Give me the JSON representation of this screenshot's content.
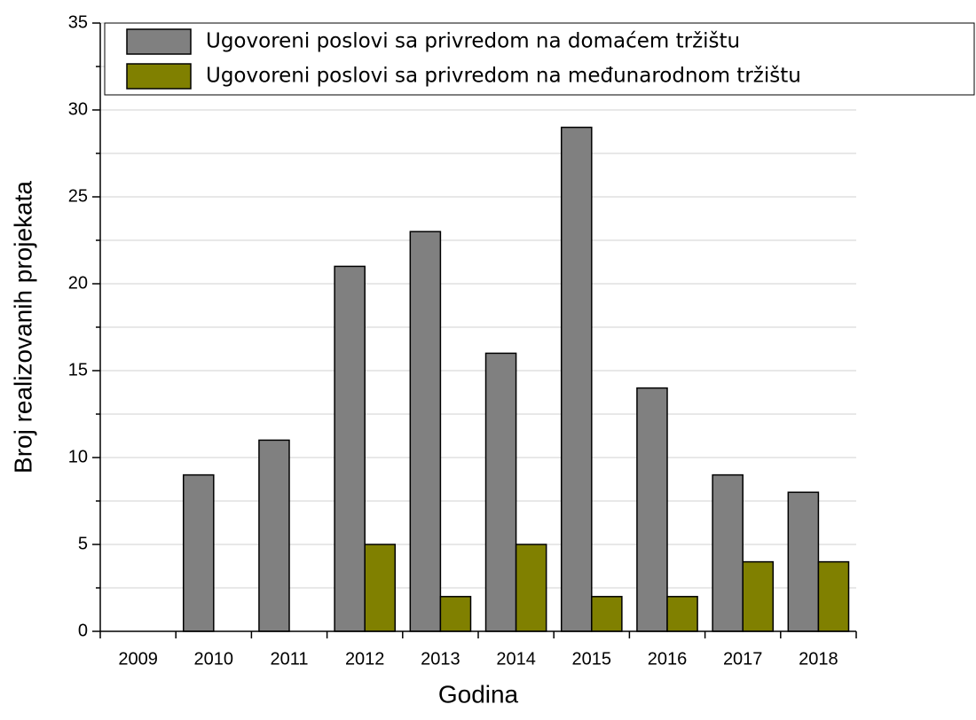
{
  "chart_data": {
    "type": "bar",
    "x_label": "Godina",
    "y_label": "Broj realizovanih projekata",
    "categories": [
      "2009",
      "2010",
      "2011",
      "2012",
      "2013",
      "2014",
      "2015",
      "2016",
      "2017",
      "2018"
    ],
    "series": [
      {
        "name": "Ugovoreni poslovi sa privredom na domaćem tržištu",
        "color": "#808080",
        "values": [
          0,
          9,
          11,
          21,
          23,
          16,
          29,
          14,
          9,
          8
        ]
      },
      {
        "name": "Ugovoreni poslovi sa privredom na međunarodnom tržištu",
        "color": "#808000",
        "values": [
          0,
          0,
          0,
          5,
          2,
          5,
          2,
          2,
          4,
          4
        ]
      }
    ],
    "ylim": [
      0,
      35
    ],
    "yticks": [
      0,
      5,
      10,
      15,
      20,
      25,
      30,
      35
    ],
    "grid": true,
    "legend": "top"
  }
}
